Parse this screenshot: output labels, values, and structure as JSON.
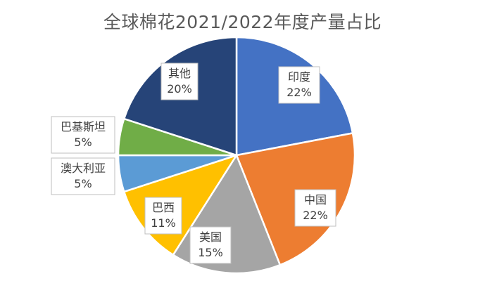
{
  "chart_data": {
    "type": "pie",
    "title": "全球棉花2021/2022年度产量占比",
    "slices": [
      {
        "label": "印度",
        "value": 22,
        "value_label": "22%",
        "color": "#4472C4"
      },
      {
        "label": "中国",
        "value": 22,
        "value_label": "22%",
        "color": "#ED7D31"
      },
      {
        "label": "美国",
        "value": 15,
        "value_label": "15%",
        "color": "#A5A5A5"
      },
      {
        "label": "巴西",
        "value": 11,
        "value_label": "11%",
        "color": "#FFC000"
      },
      {
        "label": "澳大利亚",
        "value": 5,
        "value_label": "5%",
        "color": "#5B9BD5"
      },
      {
        "label": "巴基斯坦",
        "value": 5,
        "value_label": "5%",
        "color": "#70AD47"
      },
      {
        "label": "其他",
        "value": 20,
        "value_label": "20%",
        "color": "#264478"
      }
    ],
    "start_angle_deg": 0,
    "direction": "clockwise",
    "legend": "none",
    "data_labels": "callout"
  }
}
